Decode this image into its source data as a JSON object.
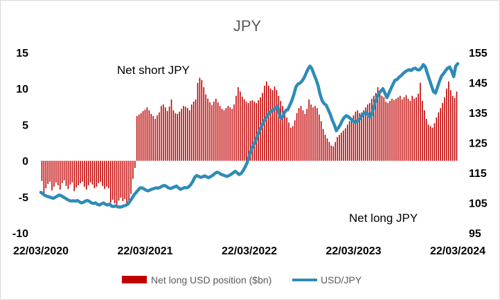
{
  "chart_data": {
    "type": "bar+line",
    "title": "JPY",
    "colors": {
      "bars": "#c00000",
      "line": "#2e8bb7",
      "axis_text": "#000000",
      "title": "#595959"
    },
    "x_tick_labels": [
      "22/03/2020",
      "22/03/2021",
      "22/03/2022",
      "22/03/2023",
      "22/03/2024"
    ],
    "y_left": {
      "ylim": [
        -10,
        15
      ],
      "ticks": [
        15,
        10,
        5,
        0,
        -5,
        -10
      ]
    },
    "y_right": {
      "ylim": [
        95,
        155
      ],
      "ticks": [
        155,
        145,
        135,
        125,
        115,
        105,
        95
      ]
    },
    "annotations": {
      "top": "Net short JPY",
      "bottom": "Net long JPY"
    },
    "legend": {
      "position": "bottom",
      "bars_label": "Net long USD position ($bn)",
      "line_label": "USD/JPY"
    },
    "series": [
      {
        "name": "Net long USD position ($bn)",
        "axis": "left",
        "kind": "bar",
        "values": [
          -2.8,
          -4.5,
          -3.8,
          -3.2,
          -2.9,
          -4.1,
          -3.6,
          -3.0,
          -3.4,
          -4.0,
          -3.1,
          -2.7,
          -3.5,
          -3.9,
          -3.3,
          -3.0,
          -4.2,
          -3.7,
          -3.4,
          -3.1,
          -2.9,
          -3.6,
          -4.0,
          -3.4,
          -3.0,
          -3.3,
          -3.8,
          -3.6,
          -3.1,
          -2.9,
          -3.5,
          -3.9,
          -3.6,
          -3.8,
          -5.8,
          -5.4,
          -5.9,
          -6.2,
          -5.5,
          -5.1,
          -5.6,
          -5.3,
          -6.0,
          -5.8,
          -4.6,
          -2.5,
          -1.0,
          6.2,
          6.4,
          6.6,
          6.9,
          7.1,
          7.4,
          7.0,
          6.5,
          6.2,
          5.8,
          6.3,
          6.7,
          7.6,
          7.8,
          7.4,
          6.9,
          7.5,
          8.5,
          7.0,
          6.6,
          6.5,
          6.8,
          7.2,
          7.6,
          7.5,
          7.3,
          7.0,
          7.8,
          8.2,
          8.5,
          10.8,
          11.5,
          11.2,
          10.2,
          9.2,
          8.6,
          8.1,
          7.7,
          8.2,
          8.6,
          8.1,
          7.6,
          7.2,
          7.0,
          7.3,
          7.6,
          7.4,
          7.2,
          7.8,
          9.0,
          10.2,
          9.6,
          8.9,
          8.5,
          8.2,
          8.0,
          8.3,
          8.4,
          8.2,
          8.0,
          8.4,
          8.8,
          9.4,
          10.4,
          11.0,
          10.4,
          10.0,
          9.8,
          10.3,
          9.8,
          9.0,
          8.3,
          7.6,
          6.8,
          6.0,
          5.3,
          4.6,
          4.8,
          5.6,
          6.6,
          7.3,
          7.6,
          7.0,
          6.5,
          7.2,
          8.5,
          7.8,
          7.4,
          7.6,
          7.3,
          6.4,
          5.5,
          4.4,
          3.6,
          3.1,
          2.6,
          2.1,
          2.0,
          2.6,
          3.3,
          3.6,
          3.9,
          4.2,
          4.5,
          5.0,
          5.5,
          5.9,
          6.3,
          6.8,
          7.0,
          6.6,
          6.7,
          7.0,
          7.4,
          7.8,
          8.0,
          8.6,
          9.0,
          9.4,
          10.2,
          9.5,
          9.0,
          8.8,
          8.2,
          8.0,
          8.3,
          8.6,
          8.4,
          8.6,
          8.8,
          9.0,
          8.5,
          8.8,
          9.1,
          8.6,
          8.3,
          9.0,
          8.6,
          8.8,
          9.3,
          10.8,
          8.3,
          7.0,
          5.8,
          5.0,
          4.8,
          4.6,
          5.2,
          6.0,
          6.7,
          7.3,
          8.0,
          8.8,
          10.0,
          11.0,
          9.8,
          9.0,
          8.7,
          9.6
        ]
      },
      {
        "name": "USD/JPY",
        "axis": "right",
        "kind": "line",
        "values": [
          108.5,
          108.0,
          107.5,
          107.2,
          107.0,
          106.8,
          106.5,
          106.8,
          107.2,
          107.6,
          107.4,
          107.0,
          106.6,
          106.2,
          105.8,
          105.6,
          105.7,
          105.6,
          105.8,
          105.4,
          105.0,
          105.2,
          105.6,
          105.8,
          105.5,
          105.0,
          104.8,
          105.0,
          104.5,
          104.3,
          104.7,
          105.0,
          104.5,
          104.3,
          104.6,
          103.9,
          103.8,
          104.0,
          103.7,
          103.6,
          103.7,
          104.0,
          104.2,
          104.6,
          105.5,
          106.5,
          107.6,
          108.4,
          109.2,
          110.0,
          110.0,
          109.6,
          109.2,
          109.0,
          109.3,
          109.6,
          109.8,
          110.0,
          109.9,
          110.2,
          110.6,
          110.8,
          110.5,
          110.0,
          109.8,
          110.0,
          110.3,
          110.6,
          110.0,
          109.5,
          109.8,
          110.1,
          110.0,
          110.3,
          111.0,
          112.0,
          113.5,
          114.1,
          113.8,
          113.5,
          113.7,
          114.0,
          113.6,
          113.4,
          113.8,
          114.2,
          114.8,
          115.2,
          115.0,
          114.5,
          114.3,
          114.0,
          113.8,
          114.1,
          114.5,
          115.0,
          115.5,
          115.0,
          114.4,
          114.8,
          115.8,
          117.0,
          118.5,
          120.8,
          122.8,
          124.2,
          125.5,
          127.4,
          129.0,
          130.5,
          131.8,
          133.0,
          134.0,
          135.0,
          135.5,
          136.0,
          136.5,
          137.2,
          134.0,
          133.0,
          134.5,
          135.7,
          136.0,
          137.5,
          139.0,
          141.0,
          143.5,
          144.5,
          144.8,
          145.5,
          146.5,
          148.0,
          149.5,
          150.5,
          149.5,
          147.7,
          146.0,
          144.0,
          141.0,
          139.0,
          138.0,
          137.5,
          136.0,
          134.5,
          132.5,
          131.0,
          129.0,
          130.0,
          131.0,
          132.5,
          133.5,
          134.0,
          133.6,
          133.0,
          132.5,
          131.8,
          132.0,
          132.5,
          133.4,
          134.5,
          134.8,
          135.1,
          134.0,
          133.6,
          135.5,
          138.0,
          139.8,
          141.4,
          142.2,
          143.0,
          141.5,
          140.0,
          141.5,
          143.0,
          144.5,
          145.8,
          146.0,
          146.8,
          147.3,
          148.0,
          148.6,
          149.0,
          149.3,
          149.0,
          149.6,
          149.8,
          149.3,
          149.2,
          149.9,
          151.0,
          150.2,
          148.0,
          146.0,
          144.0,
          142.0,
          141.5,
          143.5,
          145.5,
          147.2,
          148.0,
          149.0,
          149.8,
          150.2,
          148.8,
          147.0,
          150.5,
          151.3
        ]
      }
    ]
  }
}
